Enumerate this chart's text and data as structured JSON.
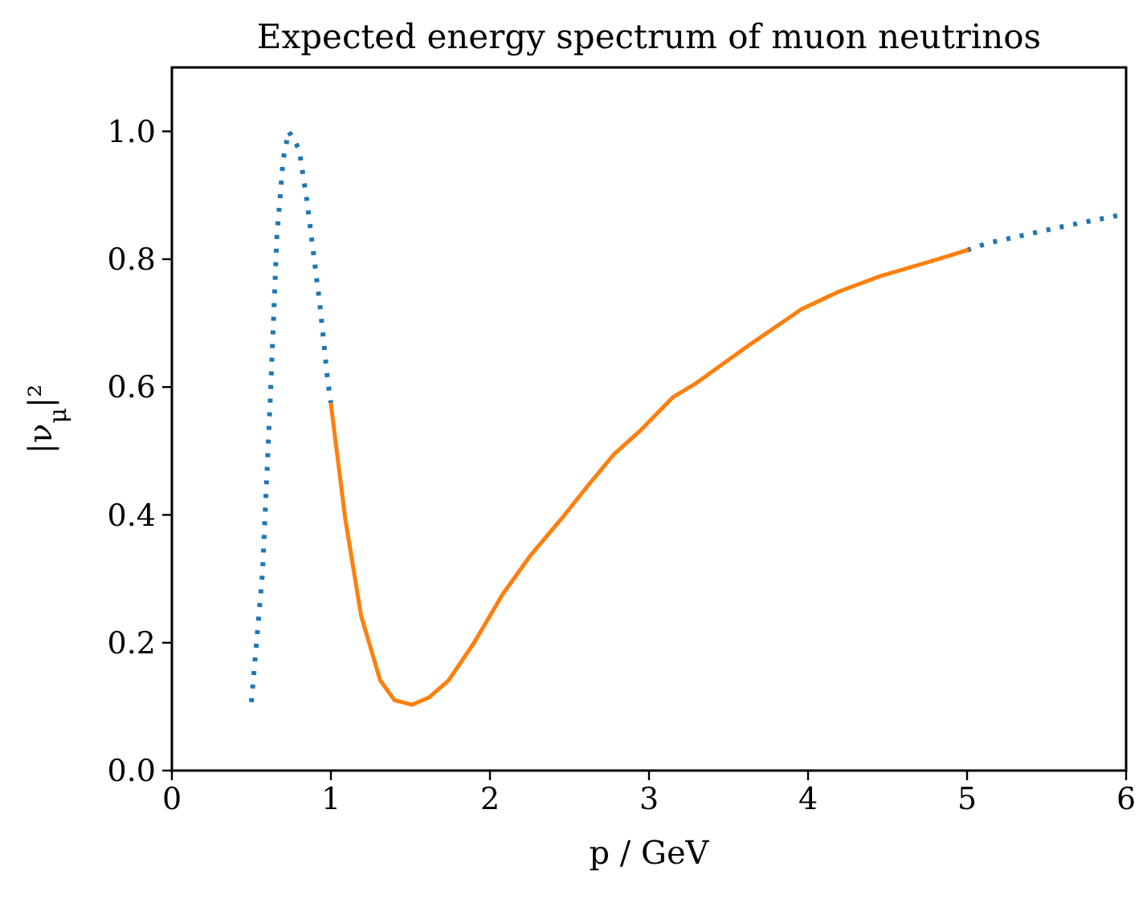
{
  "chart_data": {
    "type": "line",
    "title": "Expected energy spectrum of muon neutrinos",
    "xlabel": "p / GeV",
    "ylabel": "|ν$_{μ}$|²",
    "xlim": [
      0,
      6
    ],
    "ylim": [
      0,
      1.1
    ],
    "xticks": [
      0,
      1,
      2,
      3,
      4,
      5,
      6
    ],
    "yticks": [
      {
        "value": 0,
        "label": "0.0"
      },
      {
        "value": 0.2,
        "label": "0.2"
      },
      {
        "value": 0.4,
        "label": "0.4"
      },
      {
        "value": 0.6,
        "label": "0.6"
      },
      {
        "value": 0.8,
        "label": "0.8"
      },
      {
        "value": 1,
        "label": "1.0"
      }
    ],
    "grid": false,
    "series": [
      {
        "color": "#1f77b4",
        "line_style": "dotted",
        "x": [
          0.5,
          0.57,
          0.62,
          0.66,
          0.7,
          0.735,
          0.8,
          0.85,
          0.89,
          0.93,
          0.98,
          1.0,
          3.0,
          5.0,
          5.13,
          5.6,
          5.92,
          6.0
        ],
        "values": [
          0.107,
          0.31,
          0.59,
          0.835,
          0.957,
          1.0,
          0.972,
          0.89,
          0.81,
          0.73,
          0.61,
          0.575,
          null,
          0.814,
          0.825,
          0.851,
          0.867,
          0.87
        ]
      },
      {
        "color": "#ff7f0e",
        "line_style": "solid",
        "x": [
          1.0,
          1.09,
          1.19,
          1.31,
          1.4,
          1.51,
          1.62,
          1.74,
          1.9,
          2.08,
          2.25,
          2.45,
          2.62,
          2.78,
          2.95,
          3.15,
          3.29,
          3.62,
          3.96,
          4.2,
          4.46,
          4.75,
          5.0
        ],
        "values": [
          0.573,
          0.394,
          0.242,
          0.141,
          0.11,
          0.103,
          0.115,
          0.141,
          0.2,
          0.276,
          0.335,
          0.394,
          0.447,
          0.495,
          0.533,
          0.584,
          0.605,
          0.664,
          0.722,
          0.75,
          0.774,
          0.795,
          0.814
        ]
      }
    ]
  }
}
